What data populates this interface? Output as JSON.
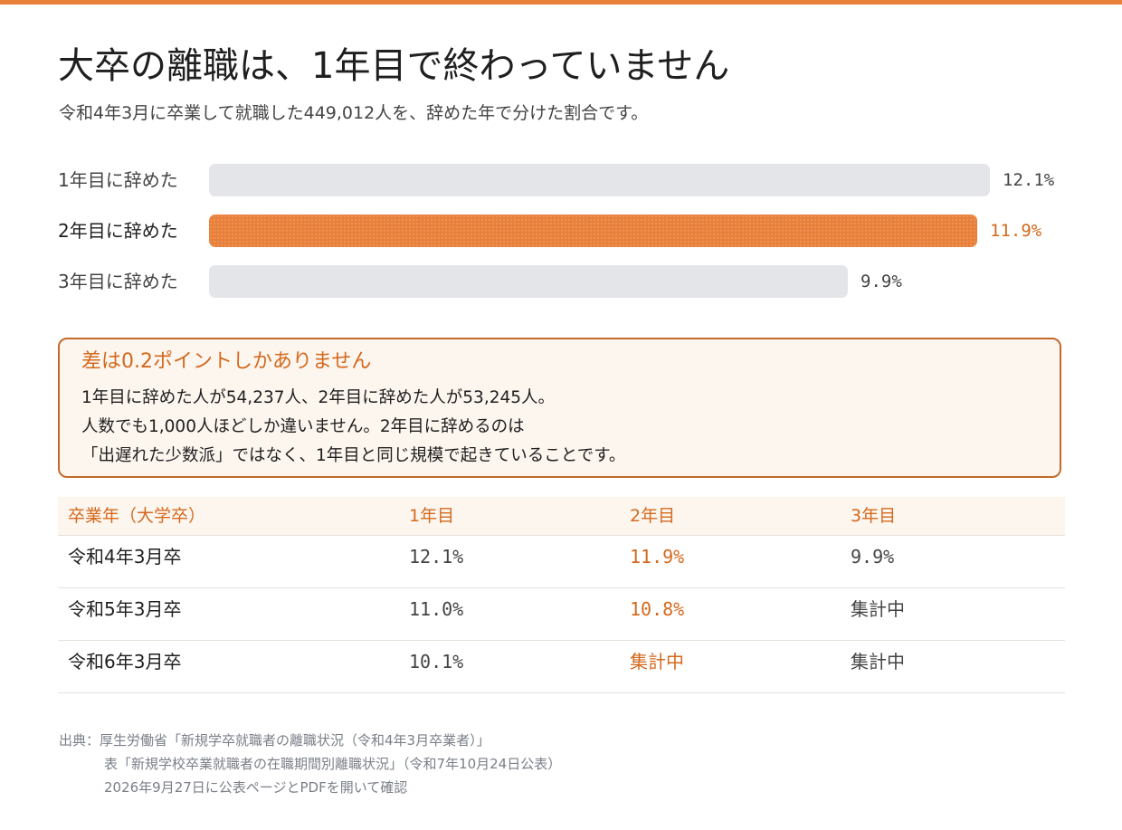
{
  "header": {
    "title": "大卒の離職は、1年目で終わっていません",
    "subtitle": "令和4年3月に卒業して就職した449,012人を、辞めた年で分けた割合です。"
  },
  "colors": {
    "accent": "#e8803a",
    "accent_text": "#d4691e",
    "bar_muted": "#e4e5e9",
    "callout_bg": "#fdf6ef",
    "callout_border": "#c36a2b"
  },
  "chart_data": {
    "type": "bar",
    "orientation": "horizontal",
    "categories": [
      "1年目に辞めた",
      "2年目に辞めた",
      "3年目に辞めた"
    ],
    "values": [
      12.1,
      11.9,
      9.9
    ],
    "value_labels": [
      "12.1%",
      "11.9%",
      "9.9%"
    ],
    "highlight_index": 1,
    "xlim": [
      0,
      12.1
    ],
    "grid": false
  },
  "callout": {
    "title": "差は0.2ポイントしかありません",
    "lines": [
      "1年目に辞めた人が54,237人、2年目に辞めた人が53,245人。",
      "人数でも1,000人ほどしか違いません。2年目に辞めるのは",
      "「出遅れた少数派」ではなく、1年目と同じ規模で起きていることです。"
    ]
  },
  "table": {
    "headers": [
      "卒業年（大学卒）",
      "1年目",
      "2年目",
      "3年目"
    ],
    "rows": [
      [
        "令和4年3月卒",
        "12.1%",
        "11.9%",
        "9.9%"
      ],
      [
        "令和5年3月卒",
        "11.0%",
        "10.8%",
        "集計中"
      ],
      [
        "令和6年3月卒",
        "10.1%",
        "集計中",
        "集計中"
      ]
    ]
  },
  "source": {
    "lines": [
      "出典：厚生労働省「新規学卒就職者の離職状況（令和4年3月卒業者）」",
      "表「新規学校卒業就職者の在職期間別離職状況」（令和7年10月24日公表）",
      "2026年9月27日に公表ページとPDFを開いて確認"
    ]
  }
}
